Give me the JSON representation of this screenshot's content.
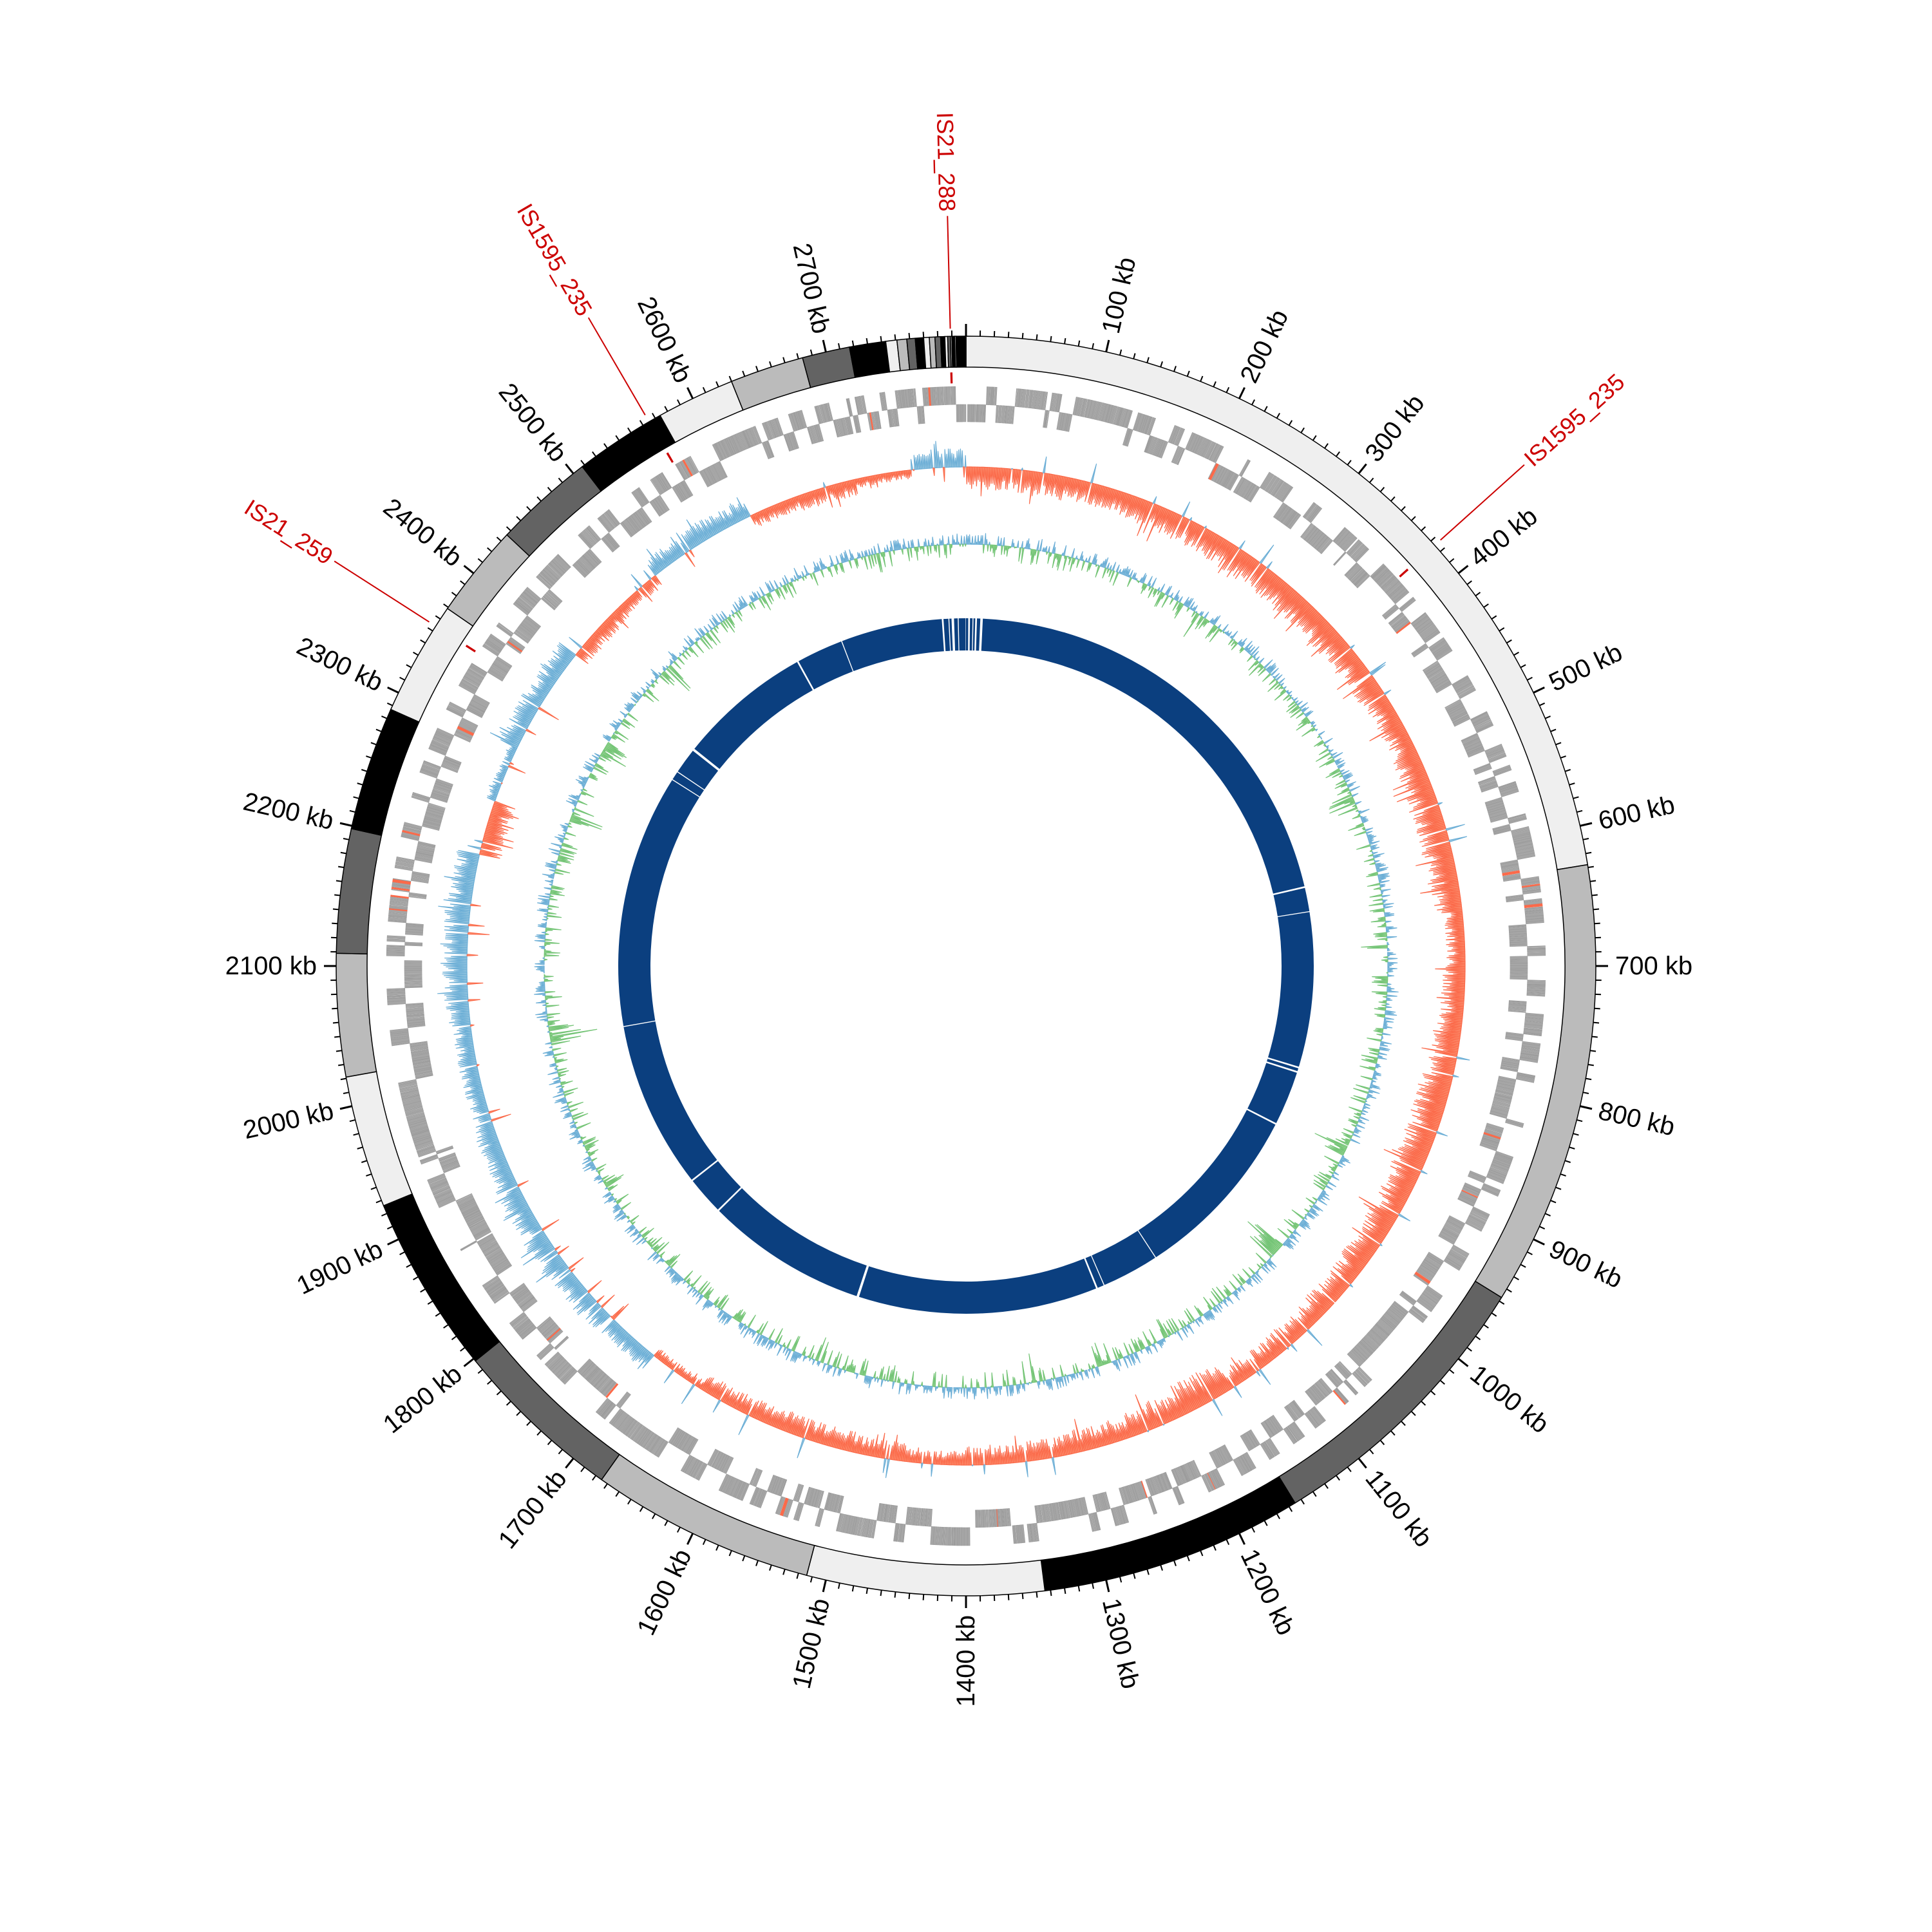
{
  "chart_data": {
    "type": "circular-genome",
    "genome_length_kb": 2800,
    "tick_unit": "kb",
    "major_tick_interval_kb": 100,
    "minor_tick_interval_kb": 10,
    "tick_labels": [
      "100 kb",
      "200 kb",
      "300 kb",
      "400 kb",
      "500 kb",
      "600 kb",
      "700 kb",
      "800 kb",
      "900 kb",
      "1000 kb",
      "1100 kb",
      "1200 kb",
      "1300 kb",
      "1400 kb",
      "1500 kb",
      "1600 kb",
      "1700 kb",
      "1800 kb",
      "1900 kb",
      "2000 kb",
      "2100 kb",
      "2200 kb",
      "2300 kb",
      "2400 kb",
      "2500 kb",
      "2600 kb",
      "2700 kb"
    ],
    "contigs": [
      {
        "start": 0,
        "end": 628,
        "shade": "#efefef"
      },
      {
        "start": 628,
        "end": 947,
        "shade": "#bbbbbb"
      },
      {
        "start": 947,
        "end": 1155,
        "shade": "#636363"
      },
      {
        "start": 1155,
        "end": 1344,
        "shade": "#000000"
      },
      {
        "start": 1344,
        "end": 1514,
        "shade": "#efefef"
      },
      {
        "start": 1514,
        "end": 1675,
        "shade": "#bbbbbb"
      },
      {
        "start": 1675,
        "end": 1798,
        "shade": "#636363"
      },
      {
        "start": 1798,
        "end": 1926,
        "shade": "#000000"
      },
      {
        "start": 1926,
        "end": 2021,
        "shade": "#efefef"
      },
      {
        "start": 2021,
        "end": 2109,
        "shade": "#bbbbbb"
      },
      {
        "start": 2109,
        "end": 2198,
        "shade": "#636363"
      },
      {
        "start": 2198,
        "end": 2287,
        "shade": "#000000"
      },
      {
        "start": 2287,
        "end": 2369,
        "shade": "#efefef"
      },
      {
        "start": 2369,
        "end": 2436,
        "shade": "#bbbbbb"
      },
      {
        "start": 2436,
        "end": 2508,
        "shade": "#636363"
      },
      {
        "start": 2508,
        "end": 2574,
        "shade": "#000000"
      },
      {
        "start": 2574,
        "end": 2630,
        "shade": "#efefef"
      },
      {
        "start": 2630,
        "end": 2683,
        "shade": "#bbbbbb"
      },
      {
        "start": 2683,
        "end": 2717,
        "shade": "#636363"
      },
      {
        "start": 2717,
        "end": 2743,
        "shade": "#000000"
      },
      {
        "start": 2743,
        "end": 2751,
        "shade": "#efefef"
      },
      {
        "start": 2751,
        "end": 2758,
        "shade": "#bbbbbb"
      },
      {
        "start": 2758,
        "end": 2764,
        "shade": "#636363"
      },
      {
        "start": 2764,
        "end": 2770,
        "shade": "#000000"
      },
      {
        "start": 2770,
        "end": 2774,
        "shade": "#efefef"
      },
      {
        "start": 2774,
        "end": 2778,
        "shade": "#bbbbbb"
      },
      {
        "start": 2778,
        "end": 2782,
        "shade": "#636363"
      },
      {
        "start": 2782,
        "end": 2785,
        "shade": "#000000"
      },
      {
        "start": 2785,
        "end": 2787,
        "shade": "#efefef"
      },
      {
        "start": 2787,
        "end": 2789,
        "shade": "#636363"
      },
      {
        "start": 2789,
        "end": 2790,
        "shade": "#efefef"
      },
      {
        "start": 2790,
        "end": 2792,
        "shade": "#000000"
      },
      {
        "start": 2792,
        "end": 2793,
        "shade": "#bbbbbb"
      },
      {
        "start": 2793,
        "end": 2800,
        "shade": "#000000"
      }
    ],
    "mobile_elements": [
      {
        "label": "IS21_288",
        "position_kb": 2789
      },
      {
        "label": "IS1595_235",
        "position_kb": 374
      },
      {
        "label": "IS1595_235",
        "position_kb": 2565
      },
      {
        "label": "IS21_259",
        "position_kb": 2354
      }
    ],
    "mobile_element_color": "#cc0000",
    "genes": {
      "color": "#a6a6a6",
      "highlight_color": "#fb6a4a"
    },
    "tracks": {
      "gc_skew": {
        "bin_kb": 50,
        "values": [
          0.5,
          0.55,
          0.5,
          0.55,
          0.6,
          0.6,
          0.65,
          0.6,
          0.6,
          0.55,
          0.6,
          0.65,
          0.6,
          0.4,
          0.5,
          0.6,
          0.7,
          0.7,
          0.65,
          0.6,
          0.55,
          0.5,
          0.45,
          0.7,
          0.6,
          0.5,
          0.45,
          0.4,
          0.3,
          0.4,
          0.45,
          0.45,
          0.4,
          0.2,
          -0.4,
          -0.5,
          -0.55,
          -0.5,
          -0.45,
          -0.4,
          -0.4,
          -0.55,
          -0.6,
          -0.5,
          0.5,
          -0.2,
          -0.5,
          -0.45,
          0.35,
          0.3,
          -0.4,
          -0.45,
          0.3,
          0.35,
          0.2,
          -0.4
        ],
        "positive_fill": "#fc9272",
        "positive_line": "#fb6a4a",
        "negative_fill": "#9ecae1",
        "negative_line": "#6baed6"
      },
      "gc_content": {
        "spikes": [
          {
            "kb": 1030,
            "v": -0.95
          },
          {
            "kb": 2025,
            "v": -0.7
          },
          {
            "kb": 2260,
            "v": -0.55
          },
          {
            "kb": 2340,
            "v": -0.5
          },
          {
            "kb": 2450,
            "v": -0.4
          },
          {
            "kb": 1560,
            "v": -0.3
          },
          {
            "kb": 1330,
            "v": -0.45
          },
          {
            "kb": 1250,
            "v": -0.35
          },
          {
            "kb": 900,
            "v": -0.45
          },
          {
            "kb": 520,
            "v": -0.4
          },
          {
            "kb": 680,
            "v": -0.3
          },
          {
            "kb": 1860,
            "v": -0.3
          },
          {
            "kb": 2700,
            "v": -0.25
          },
          {
            "kb": 260,
            "v": -0.3
          },
          {
            "kb": 1180,
            "v": -0.3
          }
        ],
        "positive_fill": "#9ecae1",
        "positive_line": "#6baed6",
        "negative_fill": "#a1d99b",
        "negative_line": "#74c476"
      },
      "blast_ring": {
        "color": "#0b3f7f",
        "gaps_kb": [
          4,
          9,
          13,
          20,
          2770,
          2778,
          2783,
          2790,
          2637,
          2575,
          2399,
          2364,
          2352,
          598,
          630,
          832,
          838,
          910,
          1143,
          1218,
          1228,
          1541,
          1753,
          1804,
          2022
        ]
      }
    }
  }
}
